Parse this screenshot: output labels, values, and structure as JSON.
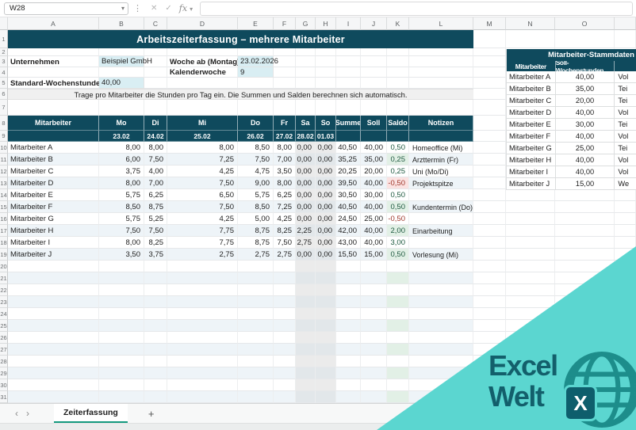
{
  "formula_bar": {
    "name_box_value": "W28",
    "fx_label": "fx"
  },
  "colors": {
    "header_dark": "#0f4a5d",
    "input_bg": "#d9eef3",
    "band_bg": "#eef4f8",
    "weekend_bg": "#ebebeb",
    "saldo_positive_bg": "#e2f0e6",
    "saldo_negative_bg": "#fbe2e1",
    "tab_accent": "#149a7f",
    "watermark_triangle": "#5bd6d0",
    "logo_text": "#135f6b"
  },
  "sheet": {
    "column_letters": [
      "A",
      "B",
      "C",
      "D",
      "E",
      "F",
      "G",
      "H",
      "I",
      "J",
      "K",
      "L",
      "M",
      "N",
      "O"
    ],
    "visible_rows": 31,
    "title": "Arbeitszeiterfassung – mehrere Mitarbeiter",
    "labels": {
      "unternehmen": "Unternehmen",
      "woche": "Woche ab (Montag)",
      "kw": "Kalenderwoche",
      "std": "Standard-Wochenstunden"
    },
    "values": {
      "unternehmen": "Beispiel GmbH",
      "woche": "23.02.2026",
      "kw": "9",
      "std": "40,00"
    },
    "instruction": "Trage pro Mitarbeiter die Stunden pro Tag ein. Die Summen und Salden berechnen sich automatisch.",
    "table": {
      "headers": [
        "Mitarbeiter",
        "Mo",
        "Di",
        "Mi",
        "Do",
        "Fr",
        "Sa",
        "So",
        "Summe",
        "Soll",
        "Saldo",
        "Notizen"
      ],
      "dates": [
        "23.02",
        "24.02",
        "25.02",
        "26.02",
        "27.02",
        "28.02",
        "01.03"
      ],
      "rows": [
        {
          "name": "Mitarbeiter A",
          "days": [
            "8,00",
            "8,00",
            "8,00",
            "8,50",
            "8,00",
            "0,00",
            "0,00"
          ],
          "summe": "40,50",
          "soll": "40,00",
          "saldo": "0,50",
          "notiz": "Homeoffice (Mi)"
        },
        {
          "name": "Mitarbeiter B",
          "days": [
            "6,00",
            "7,50",
            "7,25",
            "7,50",
            "7,00",
            "0,00",
            "0,00"
          ],
          "summe": "35,25",
          "soll": "35,00",
          "saldo": "0,25",
          "notiz": "Arzttermin (Fr)"
        },
        {
          "name": "Mitarbeiter C",
          "days": [
            "3,75",
            "4,00",
            "4,25",
            "4,75",
            "3,50",
            "0,00",
            "0,00"
          ],
          "summe": "20,25",
          "soll": "20,00",
          "saldo": "0,25",
          "notiz": "Uni (Mo/Di)"
        },
        {
          "name": "Mitarbeiter D",
          "days": [
            "8,00",
            "7,00",
            "7,50",
            "9,00",
            "8,00",
            "0,00",
            "0,00"
          ],
          "summe": "39,50",
          "soll": "40,00",
          "saldo": "-0,50",
          "notiz": "Projektspitze"
        },
        {
          "name": "Mitarbeiter E",
          "days": [
            "5,75",
            "6,25",
            "6,50",
            "5,75",
            "6,25",
            "0,00",
            "0,00"
          ],
          "summe": "30,50",
          "soll": "30,00",
          "saldo": "0,50",
          "notiz": ""
        },
        {
          "name": "Mitarbeiter F",
          "days": [
            "8,50",
            "8,75",
            "7,50",
            "8,50",
            "7,25",
            "0,00",
            "0,00"
          ],
          "summe": "40,50",
          "soll": "40,00",
          "saldo": "0,50",
          "notiz": "Kundentermin (Do)"
        },
        {
          "name": "Mitarbeiter G",
          "days": [
            "5,75",
            "5,25",
            "4,25",
            "5,00",
            "4,25",
            "0,00",
            "0,00"
          ],
          "summe": "24,50",
          "soll": "25,00",
          "saldo": "-0,50",
          "notiz": ""
        },
        {
          "name": "Mitarbeiter H",
          "days": [
            "7,50",
            "7,50",
            "7,75",
            "8,75",
            "8,25",
            "2,25",
            "0,00"
          ],
          "summe": "42,00",
          "soll": "40,00",
          "saldo": "2,00",
          "notiz": "Einarbeitung"
        },
        {
          "name": "Mitarbeiter I",
          "days": [
            "8,00",
            "8,25",
            "7,75",
            "8,75",
            "7,50",
            "2,75",
            "0,00"
          ],
          "summe": "43,00",
          "soll": "40,00",
          "saldo": "3,00",
          "notiz": ""
        },
        {
          "name": "Mitarbeiter J",
          "days": [
            "3,50",
            "3,75",
            "2,75",
            "2,75",
            "2,75",
            "0,00",
            "0,00"
          ],
          "summe": "15,50",
          "soll": "15,00",
          "saldo": "0,50",
          "notiz": "Vorlesung (Mi)"
        }
      ]
    },
    "stammdaten": {
      "title": "Mitarbeiter-Stammdaten",
      "headers": [
        "Mitarbeiter",
        "Soll-Wochenstunden",
        ""
      ],
      "rows": [
        [
          "Mitarbeiter A",
          "40,00",
          "Vol"
        ],
        [
          "Mitarbeiter B",
          "35,00",
          "Tei"
        ],
        [
          "Mitarbeiter C",
          "20,00",
          "Tei"
        ],
        [
          "Mitarbeiter D",
          "40,00",
          "Vol"
        ],
        [
          "Mitarbeiter E",
          "30,00",
          "Tei"
        ],
        [
          "Mitarbeiter F",
          "40,00",
          "Vol"
        ],
        [
          "Mitarbeiter G",
          "25,00",
          "Tei"
        ],
        [
          "Mitarbeiter H",
          "40,00",
          "Vol"
        ],
        [
          "Mitarbeiter I",
          "40,00",
          "Vol"
        ],
        [
          "Mitarbeiter J",
          "15,00",
          "We"
        ]
      ]
    }
  },
  "tabs": {
    "active": "Zeiterfassung",
    "add_label": "+"
  },
  "logo": {
    "line1": "Excel",
    "line2": "Welt",
    "x_label": "X"
  }
}
